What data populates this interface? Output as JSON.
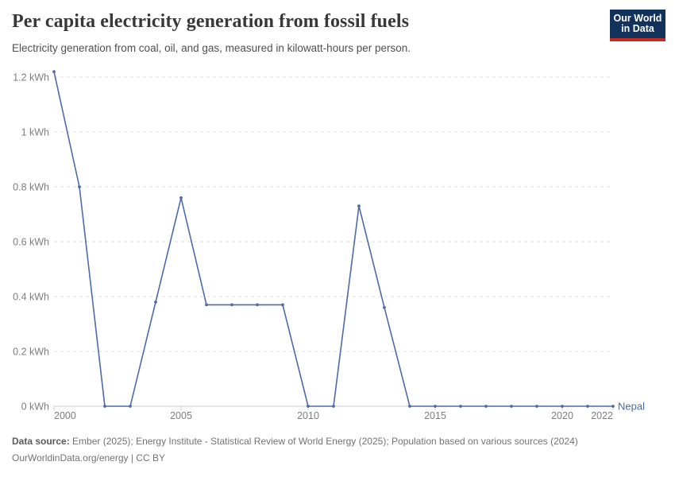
{
  "header": {
    "title": "Per capita electricity generation from fossil fuels",
    "subtitle": "Electricity generation from coal, oil, and gas, measured in kilowatt-hours per person.",
    "logo": {
      "line1": "Our World",
      "line2": "in Data",
      "bg_color": "#12325C",
      "accent_color": "#C7291F"
    }
  },
  "chart_data": {
    "type": "line",
    "title": "Per capita electricity generation from fossil fuels",
    "ylabel": "kWh",
    "xlabel": "",
    "ylim": [
      0,
      1.2
    ],
    "xlim": [
      2000,
      2022
    ],
    "grid": "horizontal-dashed",
    "legend_position": "end-of-line-label",
    "x": [
      2000,
      2001,
      2002,
      2003,
      2004,
      2005,
      2006,
      2007,
      2008,
      2009,
      2010,
      2011,
      2012,
      2013,
      2014,
      2015,
      2016,
      2017,
      2018,
      2019,
      2020,
      2021,
      2022
    ],
    "series": [
      {
        "name": "Nepal",
        "color": "#4C6BA8",
        "values": [
          1.22,
          0.8,
          0,
          0,
          0.38,
          0.76,
          0.37,
          0.37,
          0.37,
          0.37,
          0,
          0,
          0.73,
          0.36,
          0,
          0,
          0,
          0,
          0,
          0,
          0,
          0,
          0
        ]
      }
    ],
    "yticks": [
      {
        "value": 0,
        "label": "0 kWh"
      },
      {
        "value": 0.2,
        "label": "0.2 kWh"
      },
      {
        "value": 0.4,
        "label": "0.4 kWh"
      },
      {
        "value": 0.6,
        "label": "0.6 kWh"
      },
      {
        "value": 0.8,
        "label": "0.8 kWh"
      },
      {
        "value": 1,
        "label": "1 kWh"
      },
      {
        "value": 1.2,
        "label": "1.2 kWh"
      }
    ],
    "xticks": [
      {
        "value": 2000,
        "label": "2000"
      },
      {
        "value": 2005,
        "label": "2005"
      },
      {
        "value": 2010,
        "label": "2010"
      },
      {
        "value": 2015,
        "label": "2015"
      },
      {
        "value": 2020,
        "label": "2020"
      },
      {
        "value": 2022,
        "label": "2022"
      }
    ],
    "end_label": "Nepal"
  },
  "colors": {
    "line": "#4C6BA8",
    "gridline": "#DCDCDC",
    "axis": "#CBCBCB",
    "tick_text": "#7D7D7D"
  },
  "footer": {
    "data_source_label": "Data source:",
    "data_source_text": " Ember (2025); Energy Institute - Statistical Review of World Energy (2025); Population based on various sources (2024)",
    "credit": "OurWorldinData.org/energy | CC BY"
  }
}
